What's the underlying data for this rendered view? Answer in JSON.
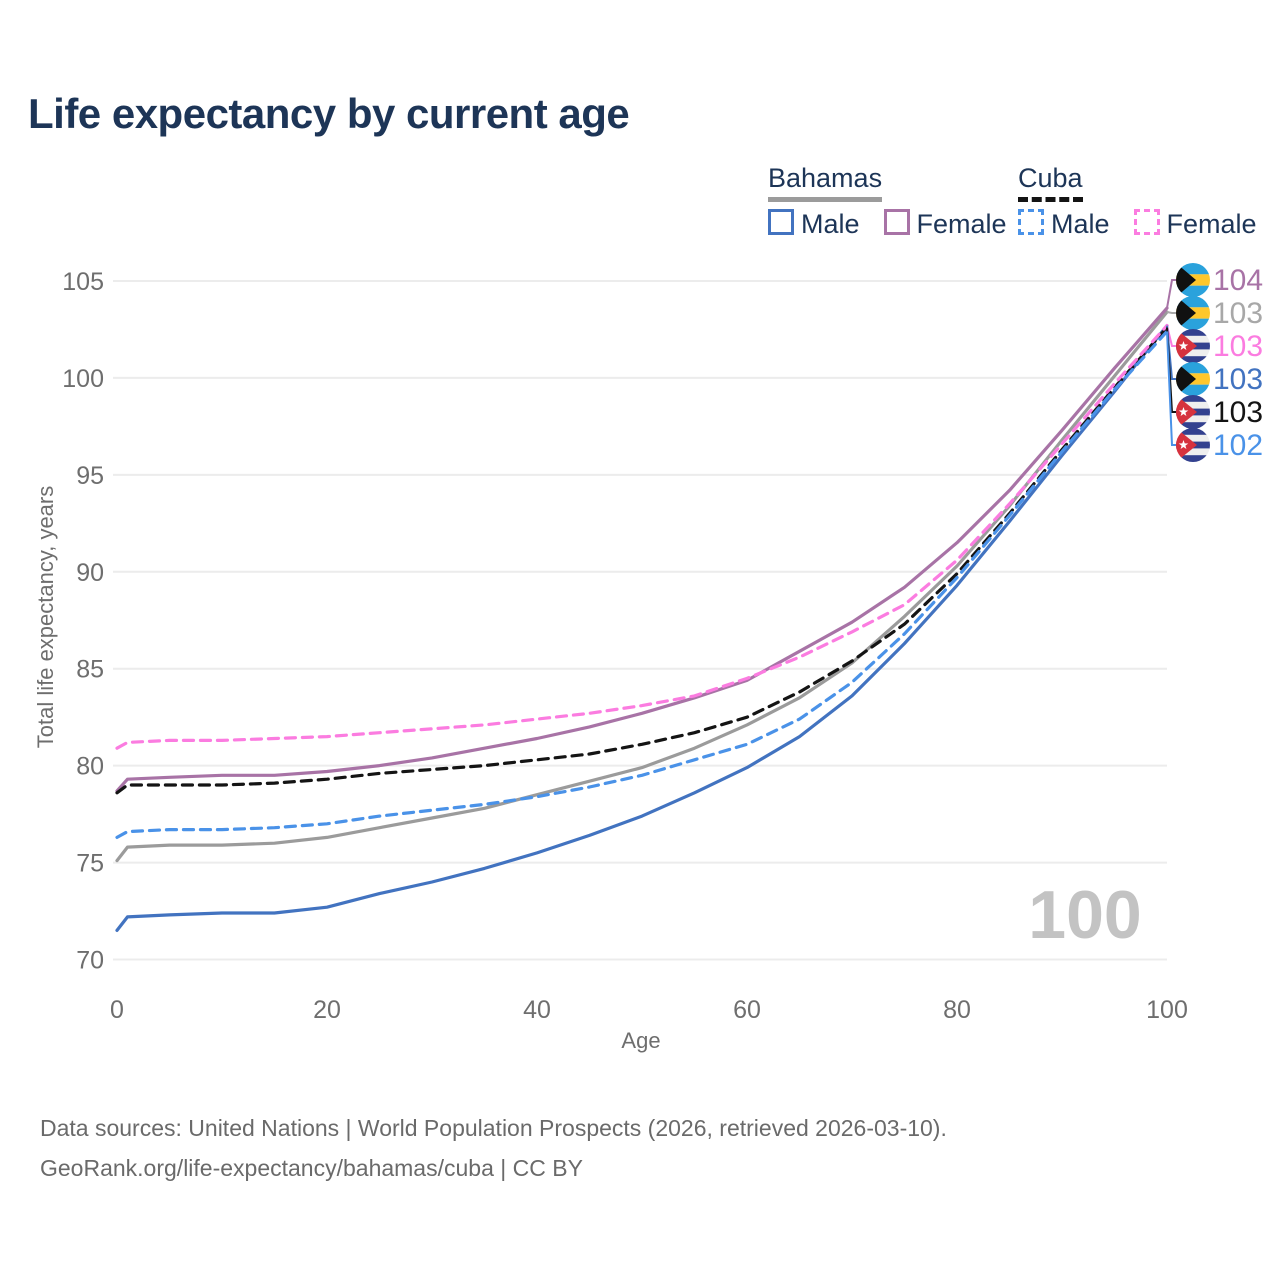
{
  "title": "Life expectancy by current age",
  "legend": {
    "groups": [
      {
        "id": "bahamas",
        "name": "Bahamas",
        "underline": {
          "color": "#9b9b9b",
          "dashed": false
        },
        "items": [
          {
            "id": "bahamas-male",
            "label": "Male",
            "color": "#4273c0",
            "dashed": false
          },
          {
            "id": "bahamas-female",
            "label": "Female",
            "color": "#a873a6",
            "dashed": false
          }
        ]
      },
      {
        "id": "cuba",
        "name": "Cuba",
        "underline": {
          "color": "#141414",
          "dashed": true
        },
        "items": [
          {
            "id": "cuba-male",
            "label": "Male",
            "color": "#4a92e8",
            "dashed": true
          },
          {
            "id": "cuba-female",
            "label": "Female",
            "color": "#fb7ce0",
            "dashed": true
          }
        ]
      }
    ]
  },
  "chart_data": {
    "type": "line",
    "title": "Life expectancy by current age",
    "xlabel": "Age",
    "ylabel": "Total life expectancy, years",
    "xlim": [
      0,
      100
    ],
    "ylim": [
      70,
      105
    ],
    "x_ticks": [
      0,
      20,
      40,
      60,
      80,
      100
    ],
    "y_ticks": [
      70,
      75,
      80,
      85,
      90,
      95,
      100,
      105
    ],
    "grid": "horizontal-only",
    "watermark": "100",
    "x": [
      0,
      1,
      5,
      10,
      15,
      20,
      25,
      30,
      35,
      40,
      45,
      50,
      55,
      60,
      65,
      70,
      75,
      80,
      85,
      90,
      95,
      100
    ],
    "series": [
      {
        "id": "bahamas_total",
        "name": "Bahamas",
        "color": "#9b9b9b",
        "dashed": false,
        "values": [
          75.1,
          75.8,
          75.9,
          75.9,
          76.0,
          76.3,
          76.8,
          77.3,
          77.8,
          78.5,
          79.2,
          79.9,
          80.9,
          82.1,
          83.5,
          85.3,
          87.7,
          90.3,
          93.4,
          96.8,
          100.1,
          103.4
        ]
      },
      {
        "id": "bahamas_male",
        "name": "Bahamas Male",
        "color": "#4273c0",
        "dashed": false,
        "values": [
          71.5,
          72.2,
          72.3,
          72.4,
          72.4,
          72.7,
          73.4,
          74.0,
          74.7,
          75.5,
          76.4,
          77.4,
          78.6,
          79.9,
          81.5,
          83.6,
          86.3,
          89.3,
          92.6,
          96.0,
          99.3,
          102.7
        ]
      },
      {
        "id": "bahamas_female",
        "name": "Bahamas Female",
        "color": "#a873a6",
        "dashed": false,
        "values": [
          78.7,
          79.3,
          79.4,
          79.5,
          79.5,
          79.7,
          80.0,
          80.4,
          80.9,
          81.4,
          82.0,
          82.7,
          83.5,
          84.4,
          85.9,
          87.4,
          89.2,
          91.5,
          94.2,
          97.3,
          100.5,
          103.6
        ]
      },
      {
        "id": "cuba_total",
        "name": "Cuba",
        "color": "#141414",
        "dashed": true,
        "values": [
          78.6,
          79.0,
          79.0,
          79.0,
          79.1,
          79.3,
          79.6,
          79.8,
          80.0,
          80.3,
          80.6,
          81.1,
          81.7,
          82.5,
          83.8,
          85.4,
          87.3,
          89.9,
          93.0,
          96.3,
          99.5,
          102.6
        ]
      },
      {
        "id": "cuba_male",
        "name": "Cuba Male",
        "color": "#4a92e8",
        "dashed": true,
        "values": [
          76.3,
          76.6,
          76.7,
          76.7,
          76.8,
          77.0,
          77.4,
          77.7,
          78.0,
          78.4,
          78.9,
          79.5,
          80.3,
          81.1,
          82.4,
          84.3,
          86.8,
          89.7,
          92.9,
          96.2,
          99.4,
          102.4
        ]
      },
      {
        "id": "cuba_female",
        "name": "Cuba Female",
        "color": "#fb7ce0",
        "dashed": true,
        "values": [
          80.9,
          81.2,
          81.3,
          81.3,
          81.4,
          81.5,
          81.7,
          81.9,
          82.1,
          82.4,
          82.7,
          83.1,
          83.6,
          84.5,
          85.6,
          86.9,
          88.3,
          90.6,
          93.5,
          96.6,
          99.7,
          102.7
        ]
      }
    ],
    "end_labels": [
      {
        "text": "104",
        "series": "bahamas_female",
        "flag": "bahamas",
        "color": "#a873a6"
      },
      {
        "text": "103",
        "series": "bahamas_total",
        "flag": "bahamas",
        "color": "#a8a8a8"
      },
      {
        "text": "103",
        "series": "cuba_female",
        "flag": "cuba",
        "color": "#fb7ce0"
      },
      {
        "text": "103",
        "series": "bahamas_male",
        "flag": "bahamas",
        "color": "#4273c0"
      },
      {
        "text": "103",
        "series": "cuba_total",
        "flag": "cuba",
        "color": "#141414"
      },
      {
        "text": "102",
        "series": "cuba_male",
        "flag": "cuba",
        "color": "#4a92e8"
      }
    ]
  },
  "footer": {
    "line1": "Data sources: United Nations | World Population Prospects (2026, retrieved 2026-03-10).",
    "line2": "GeoRank.org/life-expectancy/bahamas/cuba | CC BY"
  }
}
